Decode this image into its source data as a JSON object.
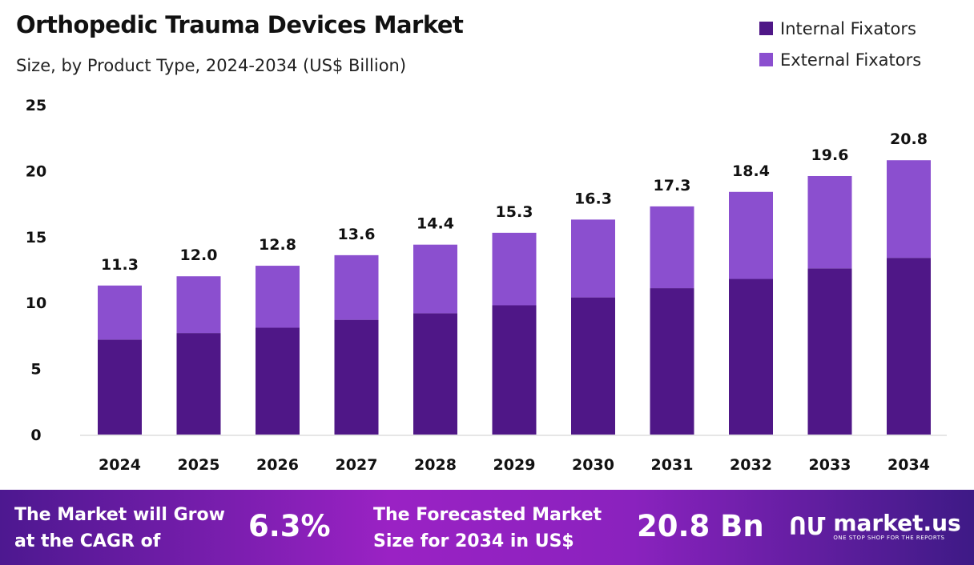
{
  "chart_data": {
    "type": "bar",
    "stacked": true,
    "title": "Orthopedic Trauma Devices Market",
    "subtitle": "Size, by Product Type, 2024-2034 (US$ Billion)",
    "categories": [
      "2024",
      "2025",
      "2026",
      "2027",
      "2028",
      "2029",
      "2030",
      "2031",
      "2032",
      "2033",
      "2034"
    ],
    "series": [
      {
        "name": "Internal Fixators",
        "color": "#4f1787",
        "values": [
          7.2,
          7.7,
          8.1,
          8.7,
          9.2,
          9.8,
          10.4,
          11.1,
          11.8,
          12.6,
          13.4
        ]
      },
      {
        "name": "External Fixators",
        "color": "#8b4fcf",
        "values": [
          4.1,
          4.3,
          4.7,
          4.9,
          5.2,
          5.5,
          5.9,
          6.2,
          6.6,
          7.0,
          7.4
        ]
      }
    ],
    "totals": [
      "11.3",
      "12.0",
      "12.8",
      "13.6",
      "14.4",
      "15.3",
      "16.3",
      "17.3",
      "18.4",
      "19.6",
      "20.8"
    ],
    "yticks": [
      "0",
      "5",
      "10",
      "15",
      "20",
      "25"
    ],
    "ylim": [
      0,
      25
    ],
    "grid": false,
    "legend_position": "top-right"
  },
  "footer": {
    "cagr_text_1": "The Market will Grow",
    "cagr_text_2": "at the CAGR of",
    "cagr_value": "6.3%",
    "forecast_text_1": "The Forecasted Market",
    "forecast_text_2": "Size for 2034 in US$",
    "forecast_value": "20.8 Bn",
    "logo_name": "market.us",
    "logo_tagline": "ONE STOP SHOP FOR THE REPORTS"
  }
}
